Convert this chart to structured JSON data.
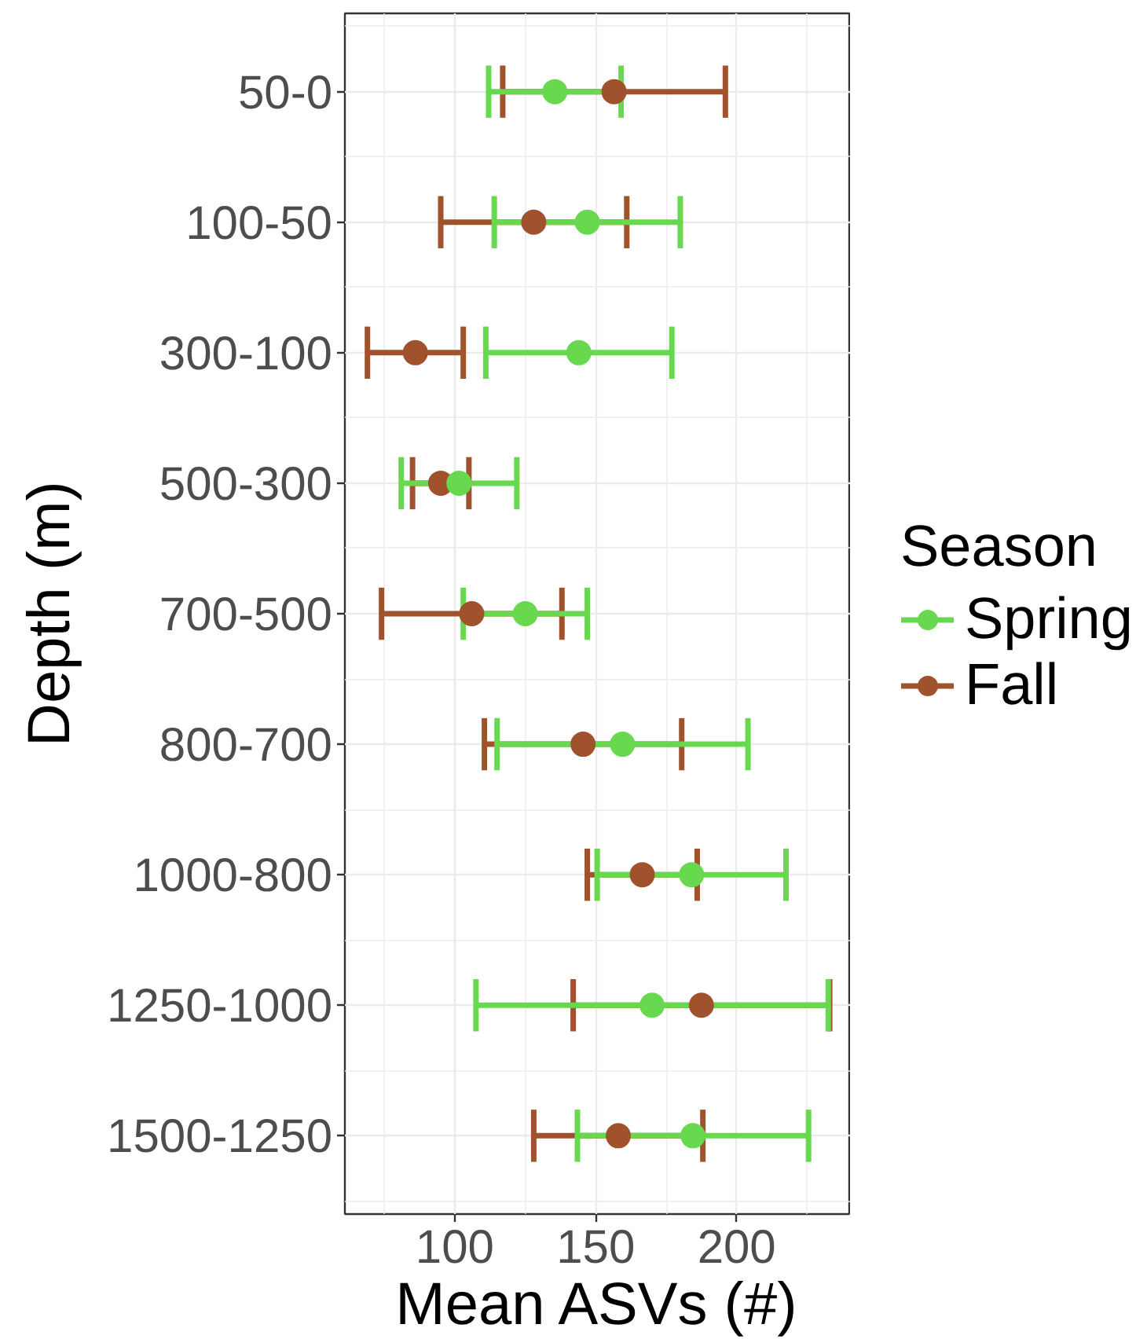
{
  "chart_data": {
    "type": "scatter",
    "orientation": "horizontal",
    "xlabel": "Mean ASVs (#)",
    "ylabel": "Depth (m)",
    "legend_title": "Season",
    "categories": [
      "50-0",
      "100-50",
      "300-100",
      "500-300",
      "700-500",
      "800-700",
      "1000-800",
      "1250-1000",
      "1500-1250"
    ],
    "series": [
      {
        "name": "Spring",
        "color": "#68d94e",
        "values": [
          135.5,
          147,
          144,
          101.5,
          125,
          159.5,
          184,
          170,
          184.5
        ],
        "errors": [
          23.5,
          33,
          33,
          20.5,
          22,
          44.5,
          33.5,
          62.5,
          41
        ]
      },
      {
        "name": "Fall",
        "color": "#a0522d",
        "values": [
          156.5,
          128,
          86,
          95,
          106,
          145.5,
          166.5,
          187.5,
          158
        ],
        "errors": [
          39.5,
          33,
          17,
          10,
          32,
          35,
          19.5,
          45.5,
          30
        ]
      }
    ],
    "xlim": [
      61,
      240.5
    ],
    "xticks": [
      100,
      150,
      200
    ],
    "grid": true,
    "legend": "right",
    "marker": "circle"
  }
}
